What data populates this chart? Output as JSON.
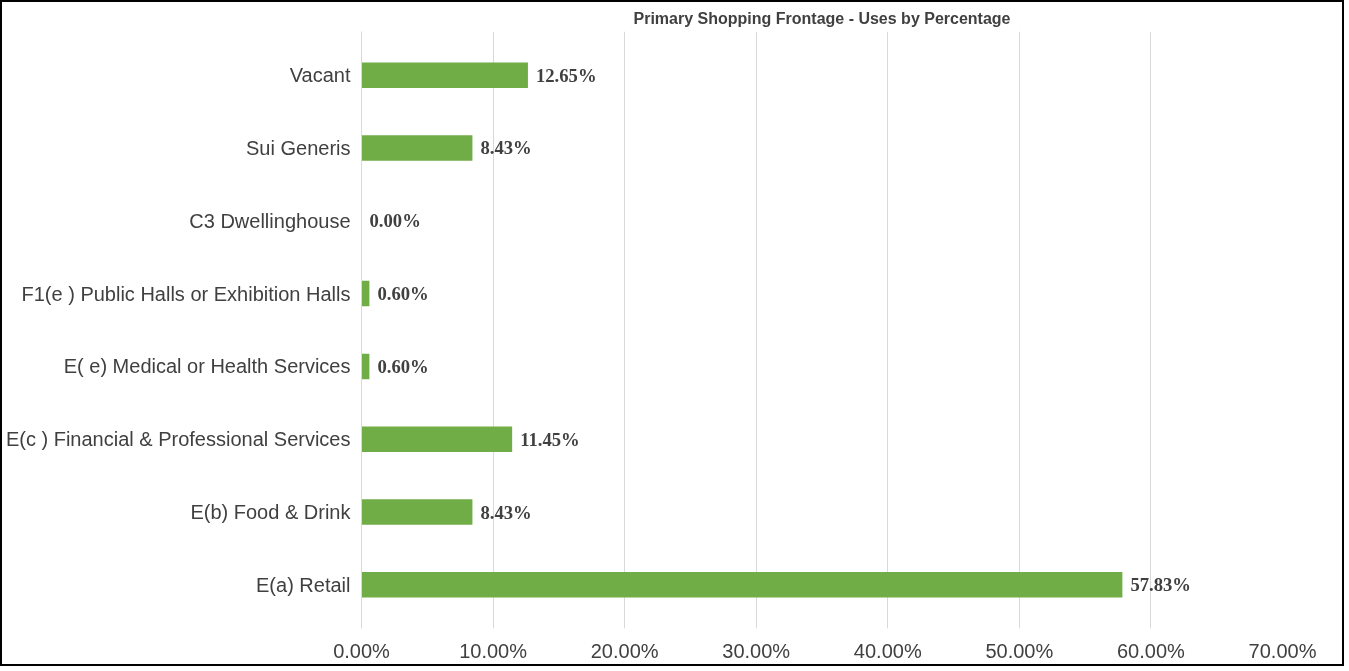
{
  "chart_data": {
    "type": "bar",
    "orientation": "horizontal",
    "title": "Primary Shopping Frontage - Uses by Percentage",
    "categories": [
      "Vacant",
      "Sui Generis",
      "C3 Dwellinghouse",
      "F1(e ) Public Halls or Exhibition Halls",
      "E( e) Medical or Health Services",
      "E(c ) Financial & Professional Services",
      "E(b) Food & Drink",
      "E(a) Retail"
    ],
    "values": [
      12.65,
      8.43,
      0,
      0.6,
      0.6,
      11.45,
      8.43,
      57.83
    ],
    "value_labels": [
      "12.65%",
      "8.43%",
      "0.00%",
      "0.60%",
      "0.60%",
      "11.45%",
      "8.43%",
      "57.83%"
    ],
    "color": "#70ad47",
    "xlim": [
      0,
      70
    ],
    "xticks": [
      {
        "value": 0,
        "label": "0.00%"
      },
      {
        "value": 10,
        "label": "10.00%"
      },
      {
        "value": 20,
        "label": "20.00%"
      },
      {
        "value": 30,
        "label": "30.00%"
      },
      {
        "value": 40,
        "label": "40.00%"
      },
      {
        "value": 50,
        "label": "50.00%"
      },
      {
        "value": 60,
        "label": "60.00%"
      },
      {
        "value": 70,
        "label": "70.00%"
      }
    ],
    "grid": "x"
  }
}
